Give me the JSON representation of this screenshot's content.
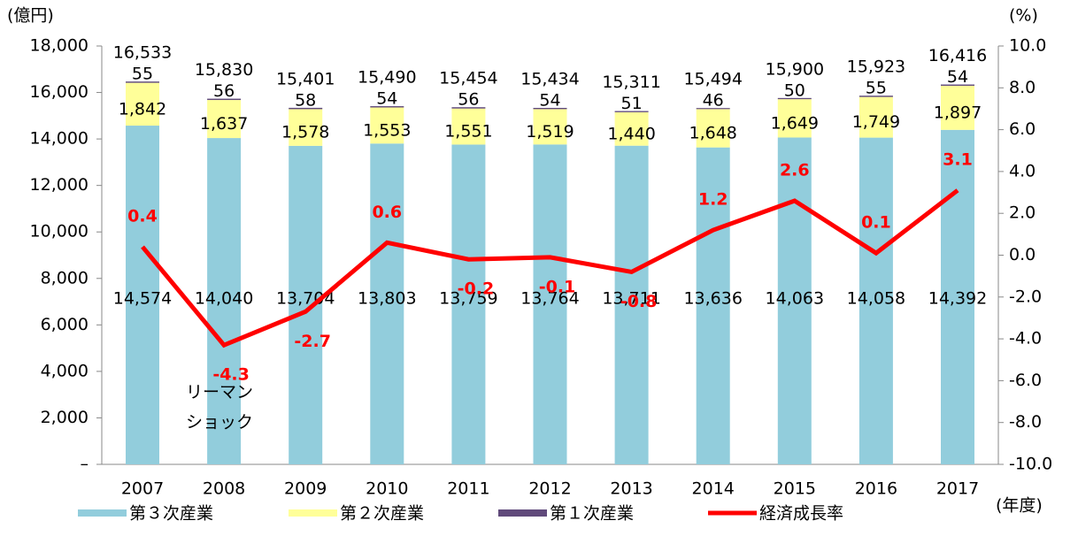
{
  "chart_data": {
    "type": "bar",
    "y_axis_label": "(億円)",
    "y2_axis_label": "(%)",
    "x_axis_label": "(年度)",
    "categories": [
      "2007",
      "2008",
      "2009",
      "2010",
      "2011",
      "2012",
      "2013",
      "2014",
      "2015",
      "2016",
      "2017"
    ],
    "series": [
      {
        "name": "第３次産業",
        "color": "#92cddc",
        "type": "bar",
        "values": [
          14574,
          14040,
          13704,
          13803,
          13759,
          13764,
          13711,
          13636,
          14063,
          14058,
          14392
        ],
        "value_labels": [
          "14,574",
          "14,040",
          "13,704",
          "13,803",
          "13,759",
          "13,764",
          "13,711",
          "13,636",
          "14,063",
          "14,058",
          "14,392"
        ]
      },
      {
        "name": "第２次産業",
        "color": "#ffff99",
        "type": "bar",
        "values": [
          1842,
          1637,
          1578,
          1553,
          1551,
          1519,
          1440,
          1648,
          1649,
          1749,
          1897
        ],
        "value_labels": [
          "1,842",
          "1,637",
          "1,578",
          "1,553",
          "1,551",
          "1,519",
          "1,440",
          "1,648",
          "1,649",
          "1,749",
          "1,897"
        ]
      },
      {
        "name": "第１次産業",
        "color": "#604a7b",
        "type": "bar",
        "values": [
          55,
          56,
          58,
          54,
          56,
          54,
          51,
          46,
          50,
          55,
          54
        ]
      },
      {
        "name": "経済成長率",
        "color": "#ff0000",
        "type": "line",
        "axis": "y2",
        "values": [
          0.4,
          -4.3,
          -2.7,
          0.6,
          -0.2,
          -0.1,
          -0.8,
          1.2,
          2.6,
          0.1,
          3.1
        ]
      }
    ],
    "totals": [
      16533,
      15830,
      15401,
      15490,
      15454,
      15434,
      15311,
      15494,
      15900,
      15923,
      16416
    ],
    "total_labels": [
      "16,533",
      "15,830",
      "15,401",
      "15,490",
      "15,454",
      "15,434",
      "15,311",
      "15,494",
      "15,900",
      "15,923",
      "16,416"
    ],
    "annotation": [
      "リーマン",
      "ショック"
    ],
    "ylim": [
      0,
      18000
    ],
    "yticks": [
      {
        "value": 0,
        "label": "–"
      },
      {
        "value": 2000,
        "label": "2,000"
      },
      {
        "value": 4000,
        "label": "4,000"
      },
      {
        "value": 6000,
        "label": "6,000"
      },
      {
        "value": 8000,
        "label": "8,000"
      },
      {
        "value": 10000,
        "label": "10,000"
      },
      {
        "value": 12000,
        "label": "12,000"
      },
      {
        "value": 14000,
        "label": "14,000"
      },
      {
        "value": 16000,
        "label": "16,000"
      },
      {
        "value": 18000,
        "label": "18,000"
      }
    ],
    "y2lim": [
      -10,
      10
    ],
    "y2ticks": [
      {
        "value": -10,
        "label": "-10.0"
      },
      {
        "value": -8,
        "label": "-8.0"
      },
      {
        "value": -6,
        "label": "-6.0"
      },
      {
        "value": -4,
        "label": "-4.0"
      },
      {
        "value": -2,
        "label": "-2.0"
      },
      {
        "value": 0,
        "label": "0.0"
      },
      {
        "value": 2,
        "label": "2.0"
      },
      {
        "value": 4,
        "label": "4.0"
      },
      {
        "value": 6,
        "label": "6.0"
      },
      {
        "value": 8,
        "label": "8.0"
      },
      {
        "value": 10,
        "label": "10.0"
      }
    ]
  }
}
